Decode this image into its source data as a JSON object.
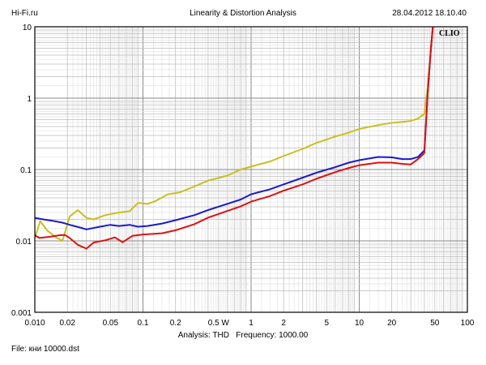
{
  "header": {
    "site": "Hi-Fi.ru",
    "title": "Linearity & Distortion Analysis",
    "datetime": "28.04.2012 18.10.40"
  },
  "footer": {
    "analysis_label": "Analysis: THD",
    "frequency_label": "Frequency: 1000.00",
    "file_label": "File: кни 10000.dst"
  },
  "chart_data": {
    "type": "line",
    "x_scale": "log",
    "y_scale": "log",
    "xlim": [
      0.01,
      100
    ],
    "ylim": [
      0.001,
      10
    ],
    "grid": true,
    "logo_text": "CLIO",
    "x_ticks": [
      {
        "v": 0.01,
        "label": "0.010"
      },
      {
        "v": 0.02,
        "label": "0.02"
      },
      {
        "v": 0.05,
        "label": "0.05"
      },
      {
        "v": 0.1,
        "label": "0.1"
      },
      {
        "v": 0.2,
        "label": "0.2"
      },
      {
        "v": 0.5,
        "label": "0.5 W"
      },
      {
        "v": 1,
        "label": "1"
      },
      {
        "v": 2,
        "label": "2"
      },
      {
        "v": 5,
        "label": "5"
      },
      {
        "v": 10,
        "label": "10"
      },
      {
        "v": 20,
        "label": "20"
      },
      {
        "v": 50,
        "label": "50"
      },
      {
        "v": 100,
        "label": "100"
      }
    ],
    "y_ticks": [
      {
        "v": 10,
        "label": "10"
      },
      {
        "v": 1,
        "label": "1"
      },
      {
        "v": 0.1,
        "label": "0.1"
      },
      {
        "v": 0.01,
        "label": "0.01"
      },
      {
        "v": 0.001,
        "label": "0.001"
      }
    ],
    "series": [
      {
        "color": "#c8c020",
        "points": [
          [
            0.01,
            0.011
          ],
          [
            0.0112,
            0.019
          ],
          [
            0.013,
            0.014
          ],
          [
            0.016,
            0.011
          ],
          [
            0.018,
            0.01
          ],
          [
            0.021,
            0.022
          ],
          [
            0.025,
            0.027
          ],
          [
            0.03,
            0.021
          ],
          [
            0.035,
            0.02
          ],
          [
            0.045,
            0.023
          ],
          [
            0.06,
            0.025
          ],
          [
            0.075,
            0.026
          ],
          [
            0.09,
            0.034
          ],
          [
            0.11,
            0.033
          ],
          [
            0.13,
            0.036
          ],
          [
            0.17,
            0.045
          ],
          [
            0.22,
            0.048
          ],
          [
            0.3,
            0.058
          ],
          [
            0.4,
            0.07
          ],
          [
            0.6,
            0.082
          ],
          [
            0.8,
            0.1
          ],
          [
            1,
            0.11
          ],
          [
            1.5,
            0.13
          ],
          [
            2,
            0.155
          ],
          [
            3,
            0.195
          ],
          [
            4,
            0.235
          ],
          [
            6,
            0.29
          ],
          [
            8,
            0.33
          ],
          [
            10,
            0.37
          ],
          [
            15,
            0.42
          ],
          [
            20,
            0.45
          ],
          [
            25,
            0.465
          ],
          [
            30,
            0.48
          ],
          [
            35,
            0.52
          ],
          [
            40,
            0.6
          ],
          [
            43,
            1.5
          ],
          [
            46,
            5.0
          ],
          [
            48,
            10
          ]
        ]
      },
      {
        "color": "#1a1acc",
        "points": [
          [
            0.01,
            0.021
          ],
          [
            0.012,
            0.02
          ],
          [
            0.015,
            0.019
          ],
          [
            0.018,
            0.018
          ],
          [
            0.022,
            0.0165
          ],
          [
            0.027,
            0.0152
          ],
          [
            0.03,
            0.0145
          ],
          [
            0.04,
            0.0158
          ],
          [
            0.05,
            0.0168
          ],
          [
            0.06,
            0.0162
          ],
          [
            0.075,
            0.0168
          ],
          [
            0.09,
            0.0158
          ],
          [
            0.11,
            0.0162
          ],
          [
            0.15,
            0.0175
          ],
          [
            0.2,
            0.0195
          ],
          [
            0.3,
            0.023
          ],
          [
            0.4,
            0.027
          ],
          [
            0.6,
            0.033
          ],
          [
            0.8,
            0.038
          ],
          [
            1,
            0.045
          ],
          [
            1.5,
            0.053
          ],
          [
            2,
            0.062
          ],
          [
            3,
            0.077
          ],
          [
            4,
            0.09
          ],
          [
            6,
            0.108
          ],
          [
            8,
            0.125
          ],
          [
            10,
            0.135
          ],
          [
            15,
            0.15
          ],
          [
            20,
            0.148
          ],
          [
            25,
            0.14
          ],
          [
            30,
            0.14
          ],
          [
            35,
            0.15
          ],
          [
            40,
            0.185
          ],
          [
            43,
            1.2
          ],
          [
            46,
            5.0
          ],
          [
            48,
            10
          ]
        ]
      },
      {
        "color": "#dd1111",
        "points": [
          [
            0.01,
            0.012
          ],
          [
            0.011,
            0.011
          ],
          [
            0.014,
            0.0115
          ],
          [
            0.017,
            0.012
          ],
          [
            0.019,
            0.0121
          ],
          [
            0.021,
            0.011
          ],
          [
            0.025,
            0.0088
          ],
          [
            0.03,
            0.0078
          ],
          [
            0.035,
            0.0095
          ],
          [
            0.045,
            0.0102
          ],
          [
            0.055,
            0.0112
          ],
          [
            0.065,
            0.0096
          ],
          [
            0.08,
            0.0118
          ],
          [
            0.1,
            0.0123
          ],
          [
            0.15,
            0.0128
          ],
          [
            0.2,
            0.0141
          ],
          [
            0.3,
            0.0172
          ],
          [
            0.4,
            0.0212
          ],
          [
            0.6,
            0.0262
          ],
          [
            0.8,
            0.0305
          ],
          [
            1,
            0.0355
          ],
          [
            1.5,
            0.0425
          ],
          [
            2,
            0.0505
          ],
          [
            3,
            0.062
          ],
          [
            4,
            0.074
          ],
          [
            6,
            0.092
          ],
          [
            8,
            0.105
          ],
          [
            10,
            0.115
          ],
          [
            15,
            0.125
          ],
          [
            20,
            0.125
          ],
          [
            25,
            0.12
          ],
          [
            30,
            0.118
          ],
          [
            35,
            0.14
          ],
          [
            40,
            0.17
          ],
          [
            43,
            1.2
          ],
          [
            46,
            5.0
          ],
          [
            48,
            10
          ]
        ]
      }
    ]
  }
}
